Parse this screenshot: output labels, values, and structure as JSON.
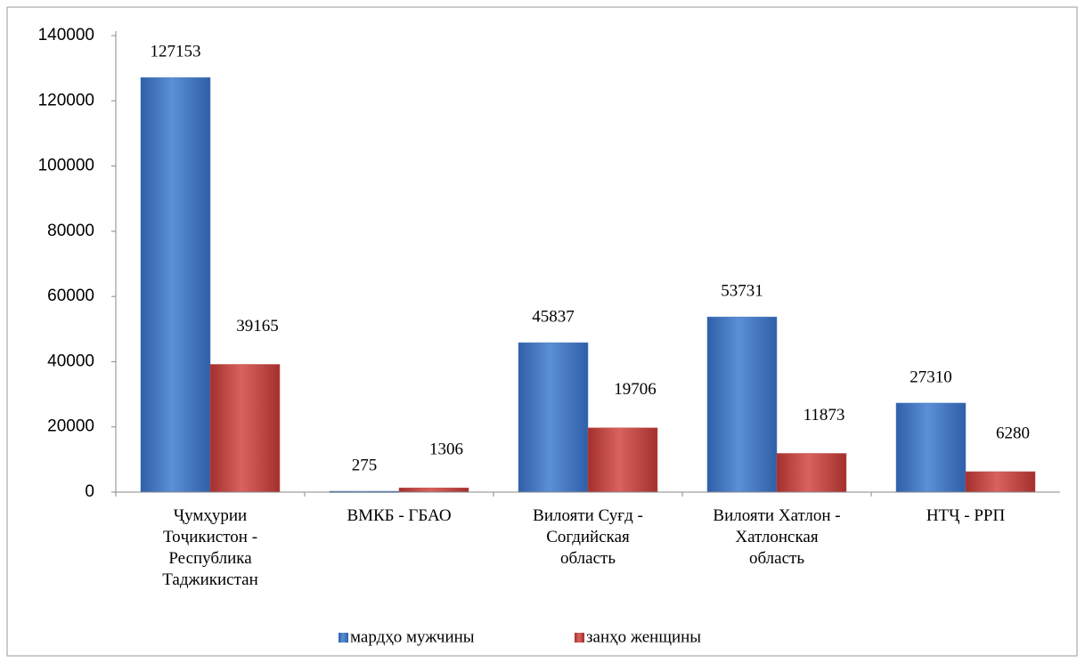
{
  "chart_data": {
    "type": "bar",
    "categories": [
      "Ҷумҳурии\nТоҷикистон -\nРеспублика\nТаджикистан",
      "ВМКБ - ГБАО",
      "Вилояти Суғд -\nСогдийская\nобласть",
      "Вилояти Хатлон -\nХатлонская\nобласть",
      "НТҶ - РРП"
    ],
    "series": [
      {
        "name": "мардҳо мужчины",
        "color": "#4a7ebb",
        "values": [
          127153,
          275,
          45837,
          53731,
          27310
        ]
      },
      {
        "name": "занҳо женщины",
        "color": "#c0504d",
        "values": [
          39165,
          1306,
          19706,
          11873,
          6280
        ]
      }
    ],
    "ylim": [
      0,
      140000
    ],
    "yticks": [
      0,
      20000,
      40000,
      60000,
      80000,
      100000,
      120000,
      140000
    ],
    "grid": false,
    "legend": "bottom"
  }
}
